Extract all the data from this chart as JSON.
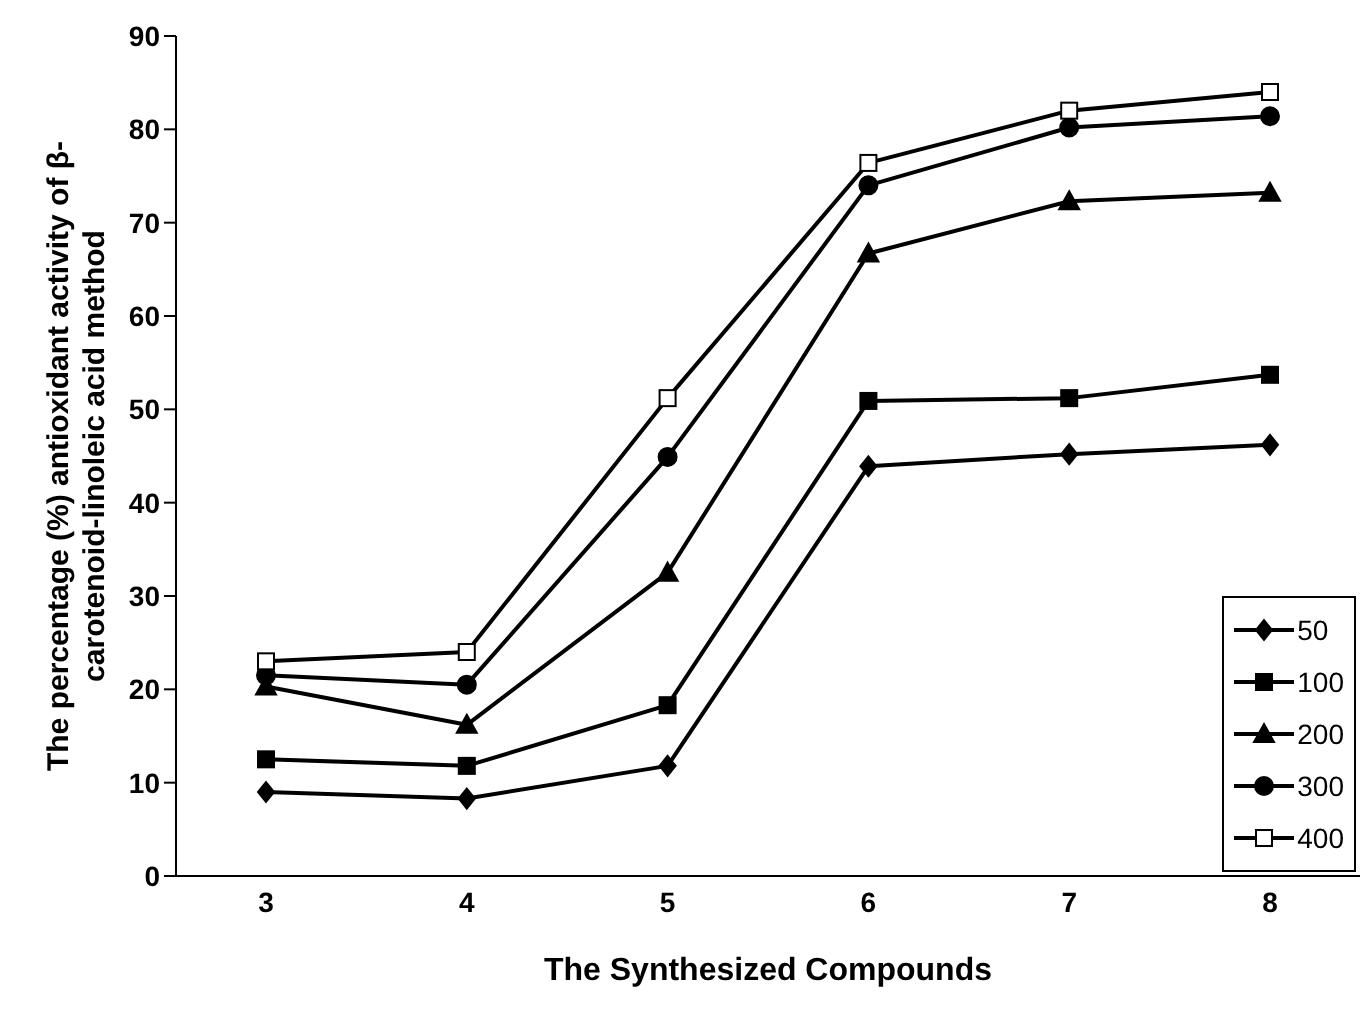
{
  "chart_data": {
    "type": "line",
    "xlabel": "The Synthesized Compounds",
    "ylabel": "The percentage (%) antioxidant activity of β-carotenoid-linoleic acid method",
    "categories": [
      "3",
      "4",
      "5",
      "6",
      "7",
      "8"
    ],
    "series": [
      {
        "name": "50",
        "color": "#000000",
        "marker": "diamond",
        "values": [
          9,
          8.3,
          11.8,
          43.9,
          45.2,
          46.2
        ]
      },
      {
        "name": "100",
        "color": "#000000",
        "marker": "square",
        "values": [
          12.5,
          11.8,
          18.3,
          50.9,
          51.2,
          53.7
        ]
      },
      {
        "name": "200",
        "color": "#000000",
        "marker": "triangle",
        "values": [
          20.3,
          16.2,
          32.5,
          66.7,
          72.3,
          73.2
        ]
      },
      {
        "name": "300",
        "color": "#000000",
        "marker": "circle",
        "values": [
          21.5,
          20.5,
          44.9,
          74,
          80.2,
          81.4
        ]
      },
      {
        "name": "400",
        "color": "#000000",
        "marker": "square",
        "values": [
          23,
          24,
          51.2,
          76.4,
          82,
          84
        ]
      }
    ],
    "ylim": [
      0,
      90
    ],
    "yticks": [
      0,
      10,
      20,
      30,
      40,
      50,
      60,
      70,
      80,
      90
    ],
    "grid": false,
    "legend": "bottom right",
    "line_style": "solid"
  }
}
